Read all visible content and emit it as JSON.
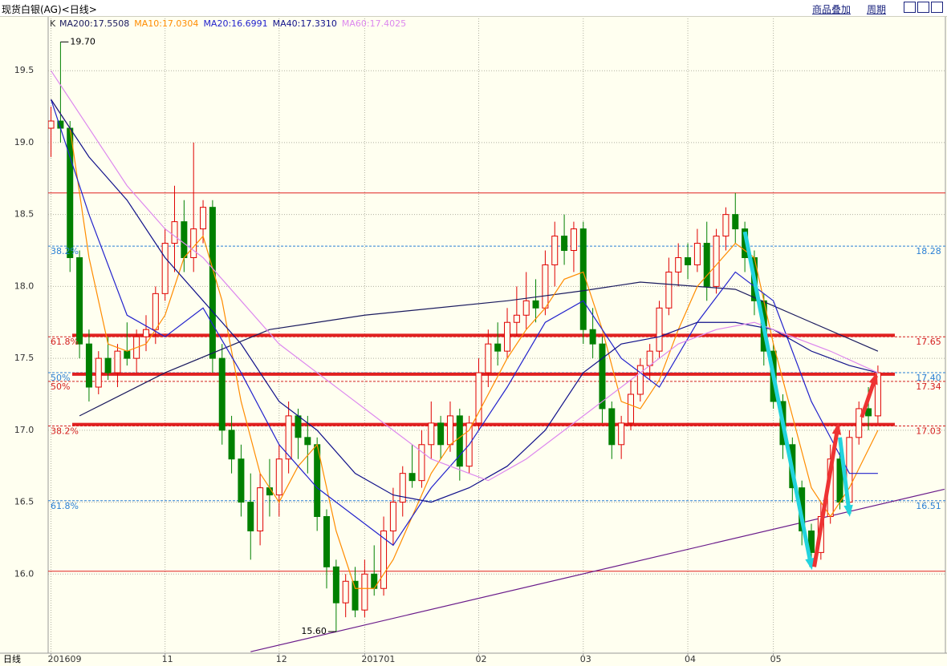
{
  "header": {
    "title": "现货白银(AG)<日线>",
    "links": [
      "商品叠加",
      "周期"
    ]
  },
  "footer_label": "日线",
  "chart_data": {
    "type": "candlestick",
    "legend_label": "K",
    "up_color": "#e00000",
    "down_color": "#008000",
    "ylim": [
      15.45,
      19.88
    ],
    "yticks": [
      {
        "value": 16,
        "label": "16.0"
      },
      {
        "value": 16.5,
        "label": "16.5"
      },
      {
        "value": 17,
        "label": "17.0"
      },
      {
        "value": 17.5,
        "label": "17.5"
      },
      {
        "value": 18,
        "label": "18.0"
      },
      {
        "value": 18.5,
        "label": "18.5"
      },
      {
        "value": 19,
        "label": "19.0"
      },
      {
        "value": 19.5,
        "label": "19.5"
      }
    ],
    "xlim": [
      -0.3,
      94.1
    ],
    "xticks": [
      {
        "value": 0,
        "label": "201609"
      },
      {
        "value": 12,
        "label": "11"
      },
      {
        "value": 24,
        "label": "12"
      },
      {
        "value": 33,
        "label": "201701"
      },
      {
        "value": 45,
        "label": "02"
      },
      {
        "value": 56,
        "label": "03"
      },
      {
        "value": 67,
        "label": "04"
      },
      {
        "value": 76,
        "label": "05"
      }
    ],
    "grid": true,
    "ohlc": [
      [
        19.1,
        19.25,
        18.9,
        19.15
      ],
      [
        19.15,
        19.7,
        19.0,
        19.1
      ],
      [
        19.1,
        19.15,
        18.1,
        18.2
      ],
      [
        18.2,
        18.25,
        17.5,
        17.6
      ],
      [
        17.6,
        17.7,
        17.2,
        17.3
      ],
      [
        17.3,
        17.55,
        17.25,
        17.5
      ],
      [
        17.5,
        17.65,
        17.35,
        17.4
      ],
      [
        17.4,
        17.6,
        17.3,
        17.55
      ],
      [
        17.55,
        17.75,
        17.45,
        17.5
      ],
      [
        17.5,
        17.7,
        17.4,
        17.65
      ],
      [
        17.65,
        17.8,
        17.55,
        17.7
      ],
      [
        17.7,
        18.0,
        17.6,
        17.95
      ],
      [
        17.95,
        18.4,
        17.9,
        18.3
      ],
      [
        18.3,
        18.7,
        18.1,
        18.45
      ],
      [
        18.45,
        18.6,
        18.1,
        18.2
      ],
      [
        18.2,
        19.0,
        18.1,
        18.4
      ],
      [
        18.4,
        18.6,
        18.3,
        18.55
      ],
      [
        18.55,
        18.6,
        17.4,
        17.5
      ],
      [
        17.5,
        17.6,
        16.9,
        17.0
      ],
      [
        17.0,
        17.1,
        16.7,
        16.8
      ],
      [
        16.8,
        16.9,
        16.4,
        16.5
      ],
      [
        16.5,
        16.7,
        16.1,
        16.3
      ],
      [
        16.3,
        16.7,
        16.2,
        16.6
      ],
      [
        16.6,
        16.8,
        16.4,
        16.55
      ],
      [
        16.55,
        16.9,
        16.4,
        16.8
      ],
      [
        16.8,
        17.2,
        16.7,
        17.1
      ],
      [
        17.1,
        17.15,
        16.8,
        16.95
      ],
      [
        16.95,
        17.1,
        16.7,
        16.9
      ],
      [
        16.9,
        16.95,
        16.3,
        16.4
      ],
      [
        16.4,
        16.45,
        15.9,
        16.05
      ],
      [
        16.05,
        16.1,
        15.6,
        15.8
      ],
      [
        15.8,
        16.0,
        15.7,
        15.95
      ],
      [
        15.95,
        16.05,
        15.7,
        15.75
      ],
      [
        15.75,
        16.1,
        15.7,
        16.0
      ],
      [
        16.0,
        16.2,
        15.85,
        15.9
      ],
      [
        15.9,
        16.4,
        15.85,
        16.3
      ],
      [
        16.3,
        16.6,
        16.2,
        16.5
      ],
      [
        16.5,
        16.75,
        16.4,
        16.7
      ],
      [
        16.7,
        16.9,
        16.6,
        16.65
      ],
      [
        16.65,
        17.0,
        16.6,
        16.9
      ],
      [
        16.9,
        17.2,
        16.8,
        17.05
      ],
      [
        17.05,
        17.1,
        16.8,
        16.9
      ],
      [
        16.9,
        17.2,
        16.85,
        17.1
      ],
      [
        17.1,
        17.15,
        16.65,
        16.75
      ],
      [
        16.75,
        17.1,
        16.7,
        17.05
      ],
      [
        17.05,
        17.5,
        17.0,
        17.4
      ],
      [
        17.4,
        17.7,
        17.3,
        17.6
      ],
      [
        17.6,
        17.75,
        17.45,
        17.55
      ],
      [
        17.55,
        17.85,
        17.5,
        17.75
      ],
      [
        17.75,
        18.0,
        17.65,
        17.8
      ],
      [
        17.8,
        18.1,
        17.7,
        17.9
      ],
      [
        17.9,
        18.05,
        17.75,
        17.85
      ],
      [
        17.85,
        18.25,
        17.8,
        18.15
      ],
      [
        18.15,
        18.45,
        18.0,
        18.35
      ],
      [
        18.35,
        18.5,
        18.15,
        18.25
      ],
      [
        18.25,
        18.45,
        18.1,
        18.4
      ],
      [
        18.4,
        18.45,
        17.6,
        17.7
      ],
      [
        17.7,
        17.85,
        17.5,
        17.6
      ],
      [
        17.6,
        17.65,
        17.05,
        17.15
      ],
      [
        17.15,
        17.2,
        16.8,
        16.9
      ],
      [
        16.9,
        17.1,
        16.8,
        17.05
      ],
      [
        17.05,
        17.35,
        17.0,
        17.25
      ],
      [
        17.25,
        17.5,
        17.2,
        17.45
      ],
      [
        17.45,
        17.6,
        17.35,
        17.55
      ],
      [
        17.55,
        17.9,
        17.5,
        17.85
      ],
      [
        17.85,
        18.2,
        17.8,
        18.1
      ],
      [
        18.1,
        18.3,
        18.0,
        18.2
      ],
      [
        18.2,
        18.3,
        18.05,
        18.15
      ],
      [
        18.15,
        18.4,
        18.1,
        18.3
      ],
      [
        18.3,
        18.45,
        17.9,
        18.0
      ],
      [
        18.0,
        18.4,
        17.95,
        18.35
      ],
      [
        18.35,
        18.55,
        18.25,
        18.5
      ],
      [
        18.5,
        18.65,
        18.3,
        18.4
      ],
      [
        18.4,
        18.45,
        18.1,
        18.2
      ],
      [
        18.2,
        18.25,
        17.8,
        17.9
      ],
      [
        17.9,
        17.95,
        17.45,
        17.55
      ],
      [
        17.55,
        17.6,
        17.15,
        17.2
      ],
      [
        17.2,
        17.25,
        16.8,
        16.9
      ],
      [
        16.9,
        16.95,
        16.5,
        16.6
      ],
      [
        16.6,
        16.65,
        16.2,
        16.3
      ],
      [
        16.3,
        16.35,
        16.05,
        16.15
      ],
      [
        16.15,
        16.5,
        16.1,
        16.4
      ],
      [
        16.4,
        16.9,
        16.35,
        16.8
      ],
      [
        16.8,
        16.85,
        16.45,
        16.5
      ],
      [
        16.5,
        17.0,
        16.45,
        16.95
      ],
      [
        16.95,
        17.2,
        16.9,
        17.15
      ],
      [
        17.15,
        17.3,
        17.0,
        17.1
      ],
      [
        17.1,
        17.45,
        17.05,
        17.4
      ]
    ],
    "series": [
      {
        "name": "MA200:17.5508",
        "color": "#1a1a5e",
        "x": [
          3,
          12,
          23,
          33,
          48,
          56,
          62,
          72,
          80,
          87
        ],
        "values": [
          17.1,
          17.4,
          17.7,
          17.8,
          17.9,
          17.97,
          18.03,
          17.98,
          17.75,
          17.55
        ]
      },
      {
        "name": "MA10:17.0304",
        "color": "#ff8c00",
        "x": [
          0,
          2,
          4,
          6,
          8,
          10,
          12,
          14,
          16,
          18,
          20,
          22,
          24,
          26,
          28,
          30,
          32,
          34,
          36,
          38,
          40,
          42,
          44,
          46,
          48,
          50,
          52,
          54,
          56,
          58,
          60,
          62,
          64,
          66,
          68,
          70,
          72,
          74,
          76,
          78,
          80,
          82,
          84,
          87
        ],
        "values": [
          19.3,
          19.1,
          18.2,
          17.6,
          17.55,
          17.6,
          17.8,
          18.2,
          18.35,
          17.9,
          17.2,
          16.7,
          16.5,
          16.75,
          16.9,
          16.3,
          15.9,
          15.9,
          16.1,
          16.4,
          16.7,
          16.9,
          17.0,
          17.25,
          17.5,
          17.7,
          17.85,
          18.05,
          18.1,
          17.7,
          17.2,
          17.15,
          17.35,
          17.7,
          18.0,
          18.15,
          18.3,
          18.2,
          17.6,
          17.1,
          16.6,
          16.4,
          16.6,
          17.0
        ]
      },
      {
        "name": "MA20:16.6991",
        "color": "#2222cc",
        "x": [
          0,
          4,
          8,
          12,
          16,
          20,
          24,
          28,
          32,
          36,
          40,
          44,
          48,
          52,
          56,
          60,
          64,
          68,
          72,
          76,
          80,
          84,
          87
        ],
        "values": [
          19.3,
          18.5,
          17.8,
          17.65,
          17.85,
          17.4,
          16.9,
          16.6,
          16.4,
          16.2,
          16.6,
          16.9,
          17.3,
          17.75,
          17.9,
          17.5,
          17.3,
          17.75,
          18.1,
          17.9,
          17.2,
          16.7,
          16.7
        ]
      },
      {
        "name": "MA40:17.3310",
        "color": "#10108a",
        "x": [
          0,
          4,
          8,
          12,
          16,
          20,
          24,
          28,
          32,
          36,
          40,
          44,
          48,
          52,
          56,
          60,
          64,
          68,
          72,
          76,
          80,
          84,
          87
        ],
        "values": [
          19.3,
          18.9,
          18.6,
          18.2,
          17.9,
          17.6,
          17.2,
          17.0,
          16.7,
          16.55,
          16.5,
          16.6,
          16.75,
          17.0,
          17.4,
          17.6,
          17.65,
          17.75,
          17.75,
          17.7,
          17.55,
          17.45,
          17.4
        ]
      },
      {
        "name": "MA60:17.4025",
        "color": "#dd88ee",
        "x": [
          0,
          4,
          8,
          12,
          16,
          20,
          24,
          28,
          32,
          36,
          40,
          44,
          46,
          50,
          54,
          58,
          62,
          66,
          70,
          74,
          78,
          82,
          87
        ],
        "values": [
          19.5,
          19.1,
          18.7,
          18.4,
          18.2,
          17.9,
          17.6,
          17.4,
          17.2,
          17.0,
          16.8,
          16.7,
          16.65,
          16.8,
          17.0,
          17.2,
          17.4,
          17.6,
          17.7,
          17.75,
          17.65,
          17.55,
          17.4
        ]
      }
    ],
    "lines": [
      {
        "value": 18.65,
        "width": 1
      },
      {
        "value": 16.02,
        "width": 1
      },
      {
        "value": 17.66,
        "width": 4
      },
      {
        "value": 17.39,
        "width": 4
      },
      {
        "value": 17.04,
        "width": 4
      }
    ],
    "line_color": "#e02020",
    "levels": [
      {
        "value": 18.28,
        "pct": "38.2%",
        "color": "#2a7fd4"
      },
      {
        "value": 17.65,
        "pct": "61.8%",
        "color": "#d42020"
      },
      {
        "value": 17.4,
        "label": "17.40",
        "pct": "50%",
        "color": "#2a7fd4"
      },
      {
        "value": 17.34,
        "pct": "50%",
        "color": "#d42020"
      },
      {
        "value": 17.03,
        "pct": "38.2%",
        "color": "#d42020"
      },
      {
        "value": 16.51,
        "pct": "61.8%",
        "color": "#2a7fd4"
      }
    ],
    "annotations": [
      {
        "x": 1,
        "value": 19.7,
        "label": "19.70"
      },
      {
        "x": 30,
        "value": 15.6,
        "label": "15.60"
      }
    ],
    "trendline": {
      "color": "#6a1b8a",
      "x": [
        21,
        94
      ],
      "values": [
        15.46,
        16.59
      ]
    },
    "arrows": [
      {
        "color": "#22d3dd",
        "x": [
          73,
          80
        ],
        "values": [
          18.38,
          16.05
        ]
      },
      {
        "color": "#22d3dd",
        "x": [
          83,
          84
        ],
        "values": [
          16.95,
          16.42
        ]
      },
      {
        "color": "#ee3333",
        "x": [
          80.3,
          82.8
        ],
        "values": [
          16.05,
          17.03
        ]
      },
      {
        "color": "#ee3333",
        "x": [
          85.3,
          86.8
        ],
        "values": [
          17.09,
          17.38
        ]
      }
    ]
  }
}
